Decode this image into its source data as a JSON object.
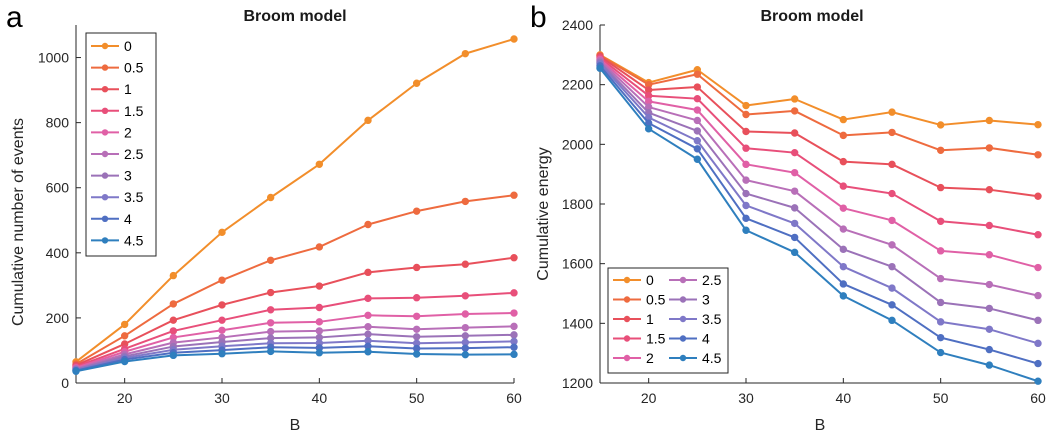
{
  "figure": {
    "panel_labels": [
      "a",
      "b"
    ]
  },
  "colors": {
    "0": "#f28e2b",
    "0.5": "#ee6b3f",
    "1": "#e8505b",
    "1.5": "#e84f7a",
    "2": "#e060a6",
    "2.5": "#b86fb8",
    "3": "#9b72b8",
    "3.5": "#7f78c8",
    "4": "#4f6fc2",
    "4.5": "#2f7fbe"
  },
  "chart_data": [
    {
      "type": "line",
      "title": "Broom model",
      "xlabel": "B",
      "ylabel": "Cumulative number of events",
      "xlim": [
        15,
        60
      ],
      "ylim": [
        0,
        1100
      ],
      "xticks": [
        20,
        30,
        40,
        50,
        60
      ],
      "yticks": [
        0,
        200,
        400,
        600,
        800,
        1000
      ],
      "grid": false,
      "legend_placement": "top-left",
      "x": [
        15,
        20,
        25,
        30,
        35,
        40,
        45,
        50,
        55,
        60
      ],
      "series": [
        {
          "name": "0",
          "values": [
            65,
            180,
            330,
            463,
            570,
            672,
            807,
            921,
            1012,
            1057
          ]
        },
        {
          "name": "0.5",
          "values": [
            58,
            145,
            243,
            316,
            377,
            418,
            487,
            528,
            558,
            577
          ]
        },
        {
          "name": "1",
          "values": [
            54,
            120,
            193,
            240,
            278,
            298,
            340,
            355,
            365,
            385
          ]
        },
        {
          "name": "1.5",
          "values": [
            50,
            105,
            160,
            193,
            225,
            232,
            260,
            262,
            268,
            277
          ]
        },
        {
          "name": "2",
          "values": [
            47,
            96,
            140,
            162,
            185,
            188,
            208,
            205,
            212,
            215
          ]
        },
        {
          "name": "2.5",
          "values": [
            44,
            88,
            124,
            140,
            158,
            160,
            173,
            165,
            170,
            174
          ]
        },
        {
          "name": "3",
          "values": [
            42,
            82,
            112,
            126,
            138,
            140,
            150,
            142,
            145,
            148
          ]
        },
        {
          "name": "3.5",
          "values": [
            40,
            77,
            102,
            113,
            122,
            123,
            130,
            122,
            125,
            128
          ]
        },
        {
          "name": "4",
          "values": [
            38,
            72,
            93,
            101,
            110,
            108,
            113,
            106,
            107,
            110
          ]
        },
        {
          "name": "4.5",
          "values": [
            36,
            66,
            85,
            90,
            97,
            93,
            96,
            89,
            87,
            88
          ]
        }
      ]
    },
    {
      "type": "line",
      "title": "Broom model",
      "xlabel": "B",
      "ylabel": "Cumulative energy",
      "xlim": [
        15,
        60
      ],
      "ylim": [
        1200,
        2400
      ],
      "xticks": [
        20,
        30,
        40,
        50,
        60
      ],
      "yticks": [
        1200,
        1400,
        1600,
        1800,
        2000,
        2200,
        2400
      ],
      "grid": false,
      "legend_placement": "bottom-left",
      "x": [
        15,
        20,
        25,
        30,
        35,
        40,
        45,
        50,
        55,
        60
      ],
      "series": [
        {
          "name": "0",
          "values": [
            2300,
            2207,
            2250,
            2130,
            2152,
            2083,
            2108,
            2065,
            2080,
            2066
          ]
        },
        {
          "name": "0.5",
          "values": [
            2298,
            2200,
            2235,
            2100,
            2112,
            2030,
            2040,
            1980,
            1988,
            1965
          ]
        },
        {
          "name": "1",
          "values": [
            2295,
            2182,
            2192,
            2043,
            2038,
            1942,
            1933,
            1855,
            1848,
            1826
          ]
        },
        {
          "name": "1.5",
          "values": [
            2290,
            2163,
            2153,
            1987,
            1972,
            1860,
            1835,
            1742,
            1728,
            1697
          ]
        },
        {
          "name": "2",
          "values": [
            2285,
            2144,
            2115,
            1933,
            1905,
            1786,
            1745,
            1643,
            1630,
            1587
          ]
        },
        {
          "name": "2.5",
          "values": [
            2280,
            2125,
            2080,
            1880,
            1843,
            1716,
            1663,
            1550,
            1530,
            1493
          ]
        },
        {
          "name": "3",
          "values": [
            2275,
            2106,
            2045,
            1835,
            1787,
            1648,
            1590,
            1470,
            1450,
            1410
          ]
        },
        {
          "name": "3.5",
          "values": [
            2270,
            2090,
            2012,
            1795,
            1735,
            1590,
            1518,
            1405,
            1380,
            1333
          ]
        },
        {
          "name": "4",
          "values": [
            2263,
            2071,
            1985,
            1752,
            1688,
            1532,
            1462,
            1352,
            1312,
            1265
          ]
        },
        {
          "name": "4.5",
          "values": [
            2255,
            2052,
            1950,
            1712,
            1638,
            1492,
            1410,
            1302,
            1260,
            1206
          ]
        }
      ]
    }
  ]
}
